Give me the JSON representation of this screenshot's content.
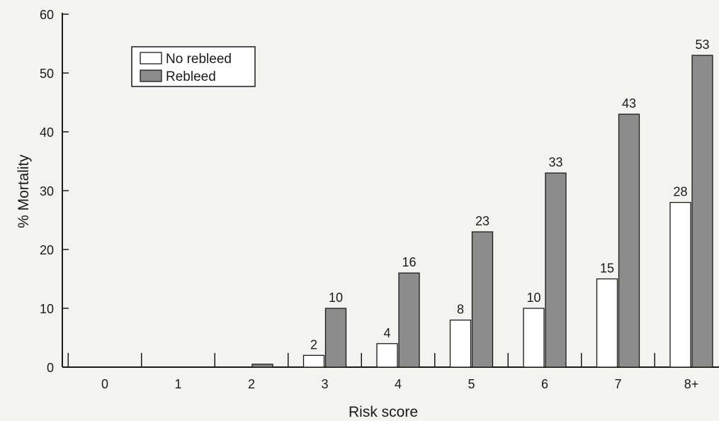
{
  "chart_data": {
    "type": "bar",
    "xlabel": "Risk score",
    "ylabel": "% Mortality",
    "ylim": [
      0,
      60
    ],
    "yticks": [
      0,
      10,
      20,
      30,
      40,
      50,
      60
    ],
    "categories": [
      "0",
      "1",
      "2",
      "3",
      "4",
      "5",
      "6",
      "7",
      "8+"
    ],
    "series": [
      {
        "name": "No rebleed",
        "color": "#ffffff",
        "values": [
          0,
          0,
          0,
          2,
          4,
          8,
          10,
          15,
          28
        ],
        "labels": [
          "",
          "",
          "",
          "2",
          "4",
          "8",
          "10",
          "15",
          "28"
        ]
      },
      {
        "name": "Rebleed",
        "color": "#8c8c8c",
        "values": [
          0,
          0,
          0.5,
          10,
          16,
          23,
          33,
          43,
          53
        ],
        "labels": [
          "",
          "",
          "",
          "10",
          "16",
          "23",
          "33",
          "43",
          "53"
        ]
      }
    ],
    "legend_position": "top-left",
    "grid": false
  }
}
